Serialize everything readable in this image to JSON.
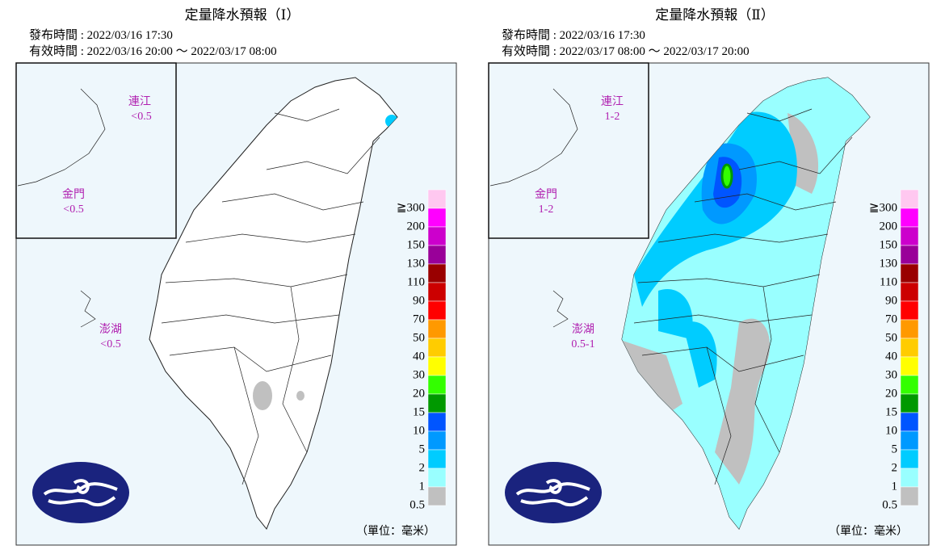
{
  "panels": [
    {
      "title": "定量降水預報（Ⅰ）",
      "issued": "發布時間 : 2022/03/16 17:30",
      "valid": "有效時間 : 2022/03/16 20:00 ～ 2022/03/17 08:00",
      "matsu": {
        "name": "連江",
        "value": "<0.5"
      },
      "kinmen": {
        "name": "金門",
        "value": "<0.5"
      },
      "penghu": {
        "name": "澎湖",
        "value": "<0.5"
      }
    },
    {
      "title": "定量降水預報（Ⅱ）",
      "issued": "發布時間 : 2022/03/16 17:30",
      "valid": "有效時間 : 2022/03/17 08:00 ～ 2022/03/17 20:00",
      "matsu": {
        "name": "連江",
        "value": "1-2"
      },
      "kinmen": {
        "name": "金門",
        "value": "1-2"
      },
      "penghu": {
        "name": "澎湖",
        "value": "0.5-1"
      }
    }
  ],
  "legend": {
    "unit": "（單位：毫米）",
    "items": [
      {
        "label": "≧300",
        "color": "#ffc8f0"
      },
      {
        "label": "200",
        "color": "#ff00ff"
      },
      {
        "label": "150",
        "color": "#cc00cc"
      },
      {
        "label": "130",
        "color": "#990099"
      },
      {
        "label": "110",
        "color": "#990000"
      },
      {
        "label": "90",
        "color": "#cc0000"
      },
      {
        "label": "70",
        "color": "#ff0000"
      },
      {
        "label": "50",
        "color": "#ff9900"
      },
      {
        "label": "40",
        "color": "#ffcc00"
      },
      {
        "label": "30",
        "color": "#ffff00"
      },
      {
        "label": "20",
        "color": "#33ff00"
      },
      {
        "label": "15",
        "color": "#009900"
      },
      {
        "label": "10",
        "color": "#0055ff"
      },
      {
        "label": "5",
        "color": "#0099ff"
      },
      {
        "label": "2",
        "color": "#00ccff"
      },
      {
        "label": "1",
        "color": "#99ffff"
      },
      {
        "label": "0.5",
        "color": "#c0c0c0"
      }
    ]
  }
}
